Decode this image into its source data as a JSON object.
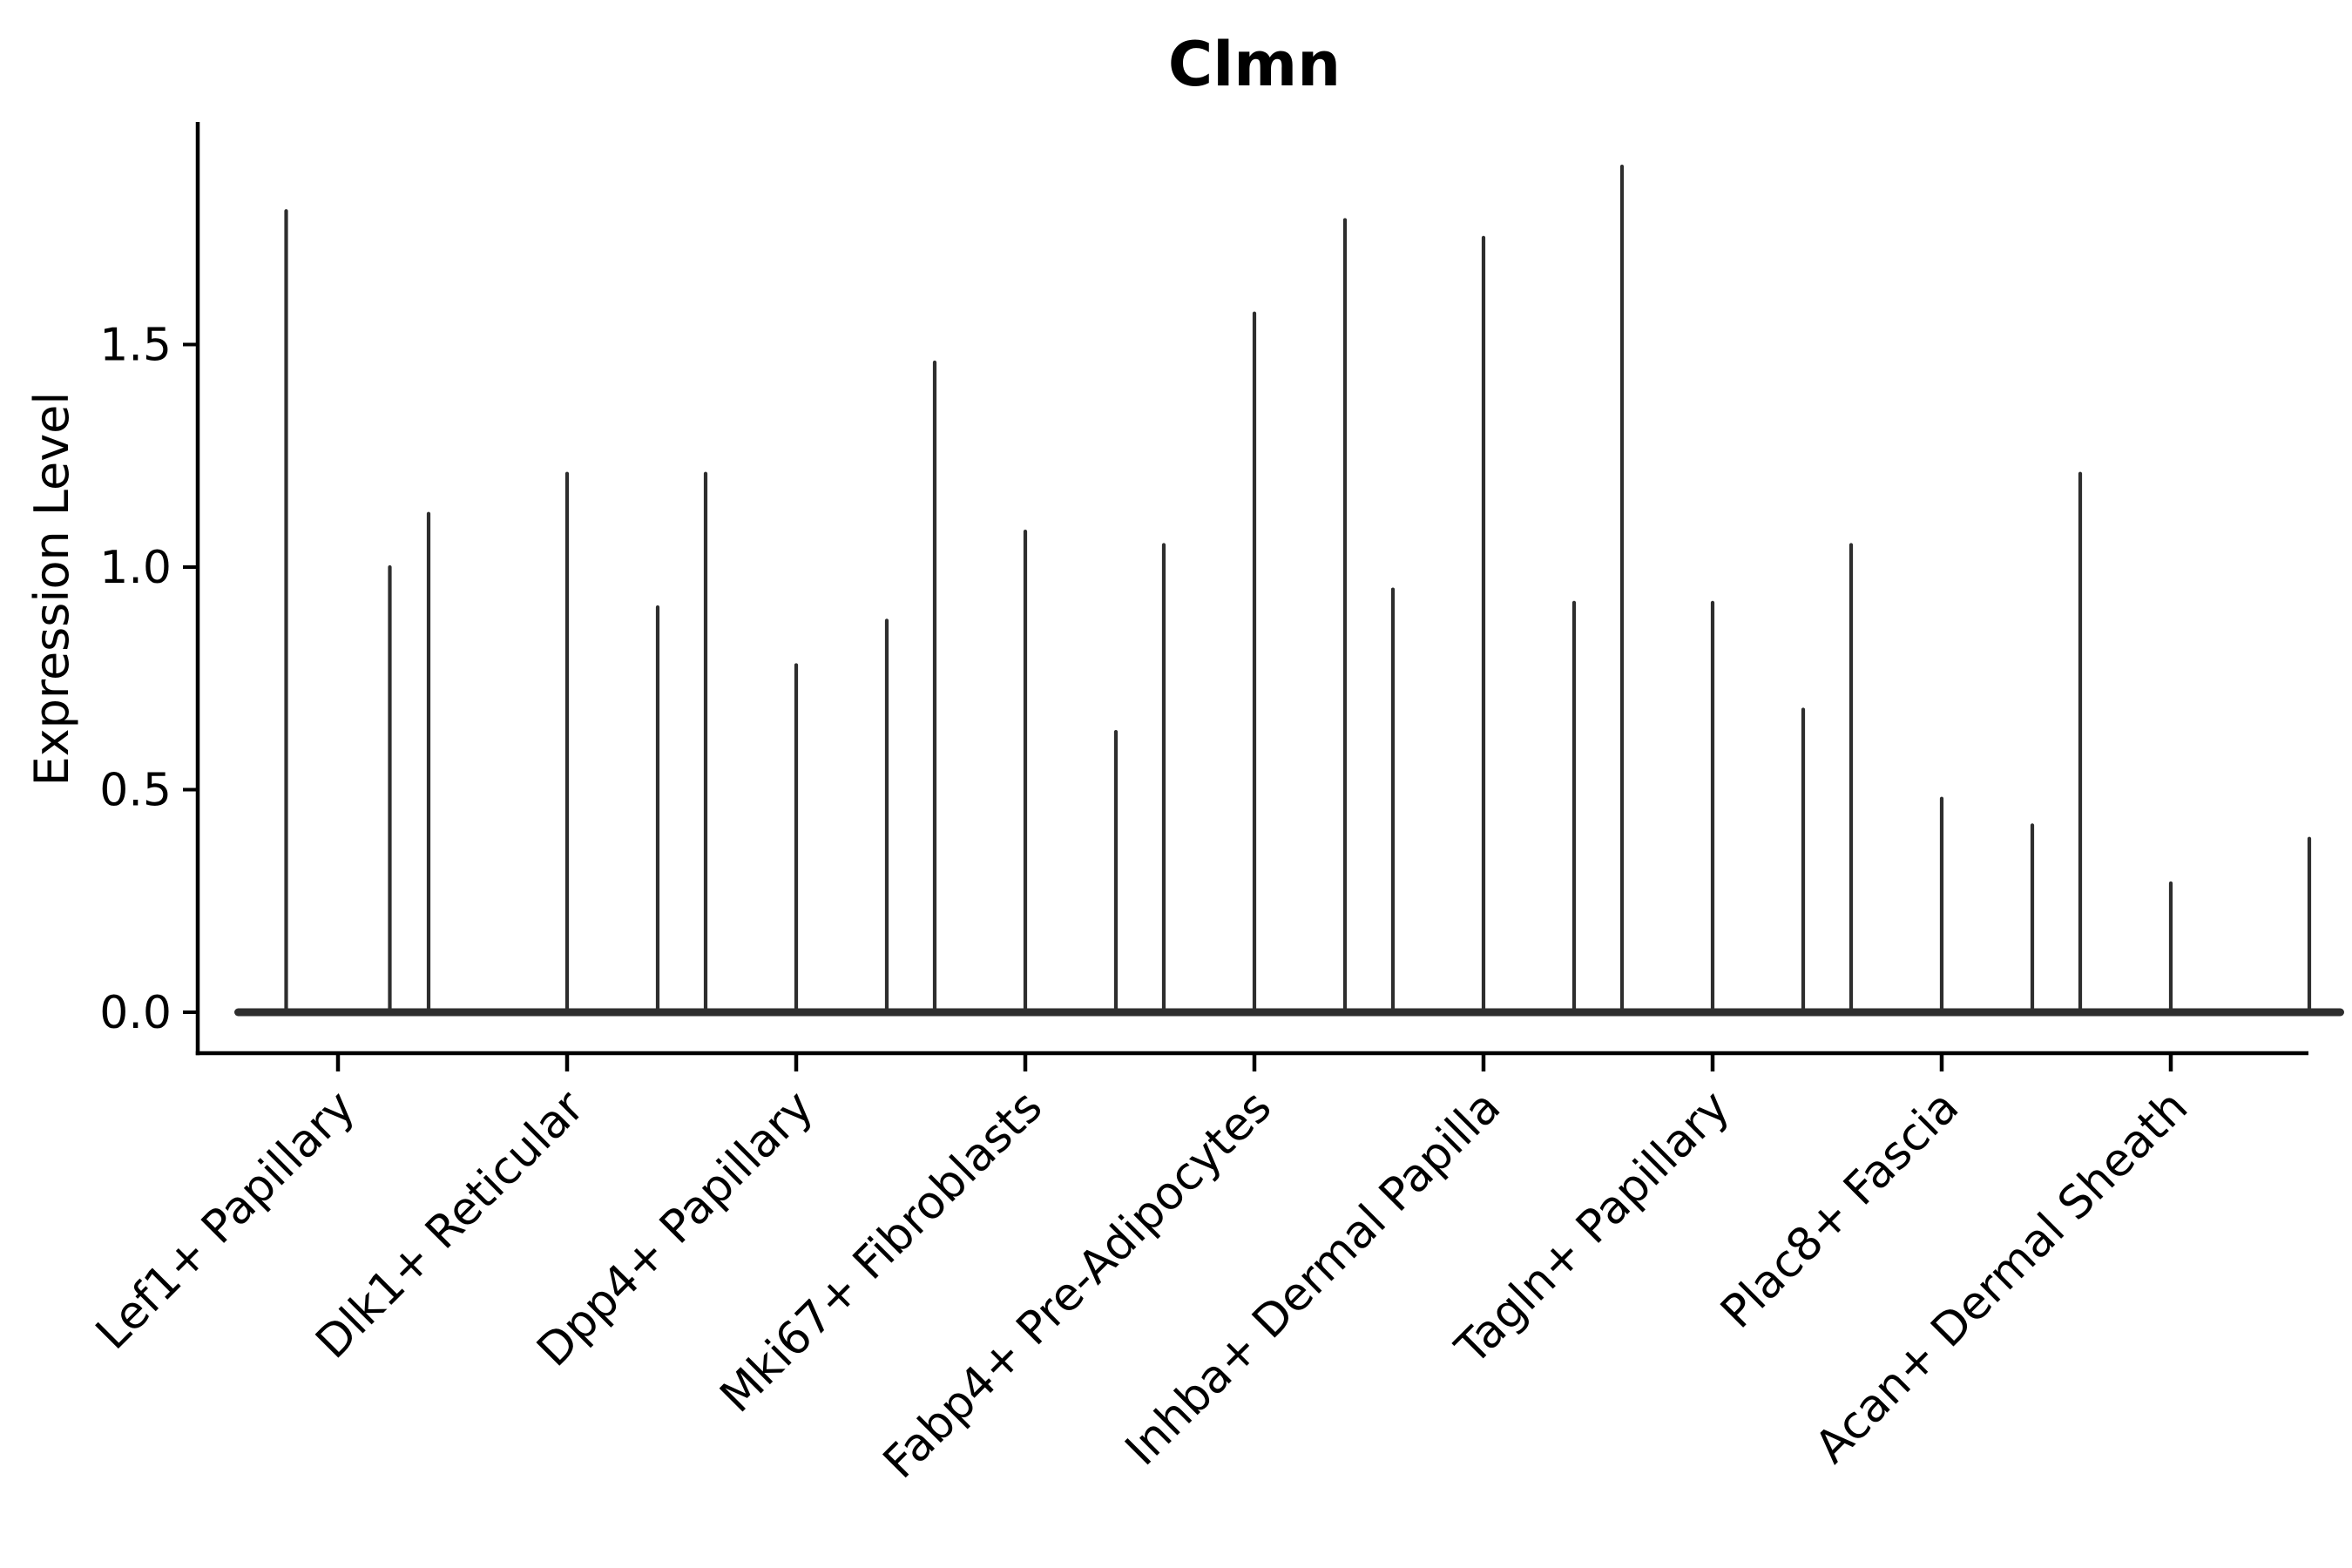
{
  "title": "Clmn",
  "ylabel": "Expression Level",
  "colors": {
    "violin": "#2e2e2e",
    "axis": "#000000",
    "text": "#000000",
    "background": "#ffffff"
  },
  "chart_data": {
    "type": "violin",
    "title": "Clmn",
    "xlabel": "",
    "ylabel": "Expression Level",
    "ylim": [
      0,
      2.0
    ],
    "yticks": [
      "0.0",
      "0.5",
      "1.0",
      "1.5"
    ],
    "ytick_values": [
      0.0,
      0.5,
      1.0,
      1.5
    ],
    "grid": "off",
    "legend": "none",
    "description": "One group of thin spike-shaped violins per cell type; most mass at 0 (flat base), thin tail rising to the max expression value listed per violin.",
    "categories": [
      "Lef1+ Papillary",
      "Dlk1+ Reticular",
      "Dpp4+ Papillary",
      "Mki67+ Fibroblasts",
      "Fabp4+ Pre-Adipocytes",
      "Inhba+ Dermal Papilla",
      "Tagln+ Papillary",
      "Plac8+ Fascia",
      "Acan+ Dermal Sheath"
    ],
    "groups": [
      {
        "category": "Lef1+ Papillary",
        "violin_max_values": [
          1.8,
          1.0
        ]
      },
      {
        "category": "Dlk1+ Reticular",
        "violin_max_values": [
          1.12,
          1.21,
          1.21
        ]
      },
      {
        "category": "Dpp4+ Papillary",
        "violin_max_values": [
          0.91,
          0.78,
          1.46
        ]
      },
      {
        "category": "Mki67+ Fibroblasts",
        "violin_max_values": [
          0.88,
          1.08,
          1.05
        ]
      },
      {
        "category": "Fabp4+ Pre-Adipocytes",
        "violin_max_values": [
          0.63,
          1.57,
          0.95
        ]
      },
      {
        "category": "Inhba+ Dermal Papilla",
        "violin_max_values": [
          1.78,
          1.74,
          1.9
        ]
      },
      {
        "category": "Tagln+ Papillary",
        "violin_max_values": [
          0.92,
          0.92,
          1.05
        ]
      },
      {
        "category": "Plac8+ Fascia",
        "violin_max_values": [
          0.68,
          0.48,
          1.21
        ]
      },
      {
        "category": "Acan+ Dermal Sheath",
        "violin_max_values": [
          0.42,
          0.29,
          0.39
        ]
      }
    ]
  }
}
